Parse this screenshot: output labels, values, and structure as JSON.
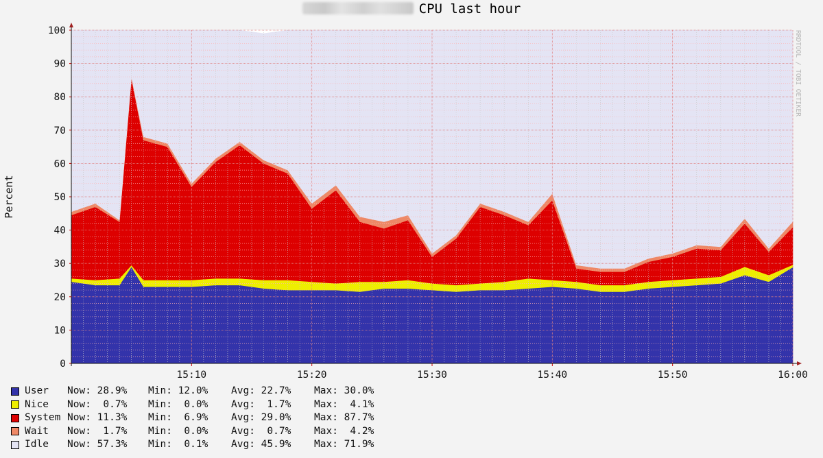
{
  "page": {
    "title": "CPU last hour"
  },
  "chart_data": {
    "type": "area",
    "stacked": true,
    "title": "CPU last hour",
    "ylabel": "Percent",
    "xlabel": "",
    "ylim": [
      0,
      100
    ],
    "y_ticks": [
      "0",
      "10",
      "20",
      "30",
      "40",
      "50",
      "60",
      "70",
      "80",
      "90",
      "100"
    ],
    "x_tick_labels": [
      "15:10",
      "15:20",
      "15:30",
      "15:40",
      "15:50",
      "16:00"
    ],
    "x_range": [
      "15:00",
      "16:00"
    ],
    "grid": true,
    "watermark": "RRDTOOL / TOBI OETIKER",
    "x": [
      "15:00",
      "15:02",
      "15:04",
      "15:05",
      "15:06",
      "15:08",
      "15:10",
      "15:12",
      "15:14",
      "15:16",
      "15:18",
      "15:20",
      "15:22",
      "15:24",
      "15:26",
      "15:28",
      "15:30",
      "15:32",
      "15:34",
      "15:36",
      "15:38",
      "15:40",
      "15:42",
      "15:44",
      "15:46",
      "15:48",
      "15:50",
      "15:52",
      "15:54",
      "15:56",
      "15:58",
      "16:00"
    ],
    "series": [
      {
        "name": "User",
        "color": "#3333aa",
        "values": [
          24.5,
          23.5,
          23.5,
          29,
          23,
          23,
          23,
          23.5,
          23.5,
          22.5,
          22,
          22,
          22,
          21.5,
          22.5,
          22.5,
          22,
          21.5,
          22,
          22,
          22.5,
          23,
          22.5,
          21.5,
          21.5,
          22.5,
          23,
          23.5,
          24,
          26.5,
          24.5,
          28.9
        ]
      },
      {
        "name": "Nice",
        "color": "#eeee00",
        "values": [
          1,
          1.5,
          2,
          0.5,
          2,
          2,
          2,
          2,
          2,
          2.5,
          3,
          2.5,
          2,
          3,
          2,
          2.5,
          2,
          2,
          2,
          2.5,
          3,
          2,
          2,
          2,
          2,
          2,
          2,
          2,
          2,
          2.5,
          2,
          0.7
        ]
      },
      {
        "name": "System",
        "color": "#dd0000",
        "values": [
          19,
          22,
          17,
          56,
          42,
          40,
          28,
          35,
          40,
          35,
          32,
          22,
          28,
          18,
          16,
          18,
          8,
          14,
          23,
          20,
          16,
          24,
          4,
          4,
          4,
          6,
          7,
          9,
          8,
          13,
          7,
          11.3
        ]
      },
      {
        "name": "Wait",
        "color": "#ee8866",
        "values": [
          1,
          1,
          0.5,
          0.5,
          1,
          1,
          1,
          1,
          1,
          1,
          1,
          1.5,
          1.5,
          1.5,
          2,
          1.5,
          1,
          1,
          1,
          1,
          1,
          2,
          1,
          1,
          1,
          1,
          1,
          1,
          1,
          1.5,
          1,
          1.7
        ]
      },
      {
        "name": "Idle",
        "color": "#e4e4f4",
        "values": [
          54.5,
          52,
          57,
          14,
          32,
          34,
          46,
          38.5,
          33.5,
          38,
          42,
          52,
          46.5,
          56,
          57.5,
          55.5,
          67,
          61.5,
          52,
          54.5,
          57.5,
          49,
          70.5,
          71.5,
          71.5,
          68.5,
          67,
          64.5,
          65,
          56.5,
          65.5,
          57.3
        ]
      }
    ]
  },
  "legend": [
    {
      "name": "User",
      "color": "#3333aa",
      "now": "Now: 28.9%",
      "min": "Min: 12.0%",
      "avg": "Avg: 22.7%",
      "max": "Max: 30.0%"
    },
    {
      "name": "Nice",
      "color": "#eeee00",
      "now": "Now:  0.7%",
      "min": "Min:  0.0%",
      "avg": "Avg:  1.7%",
      "max": "Max:  4.1%"
    },
    {
      "name": "System",
      "color": "#dd0000",
      "now": "Now: 11.3%",
      "min": "Min:  6.9%",
      "avg": "Avg: 29.0%",
      "max": "Max: 87.7%"
    },
    {
      "name": "Wait",
      "color": "#ee8866",
      "now": "Now:  1.7%",
      "min": "Min:  0.0%",
      "avg": "Avg:  0.7%",
      "max": "Max:  4.2%"
    },
    {
      "name": "Idle",
      "color": "#e4e4f4",
      "now": "Now: 57.3%",
      "min": "Min:  0.1%",
      "avg": "Avg: 45.9%",
      "max": "Max: 71.9%"
    }
  ]
}
